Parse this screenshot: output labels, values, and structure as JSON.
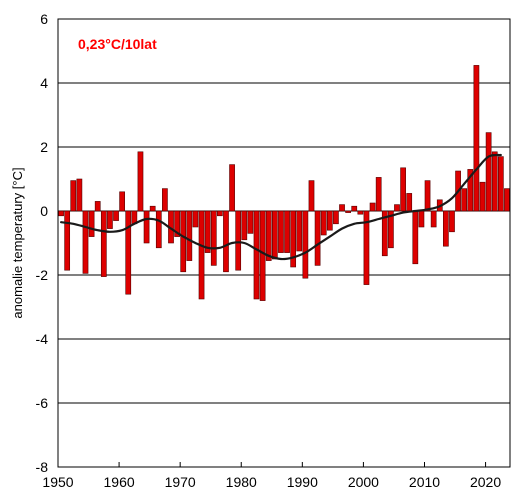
{
  "chart_data": {
    "type": "bar",
    "title": "",
    "xlabel": "",
    "ylabel": "anomalie temperatury [°C]",
    "annotation": "0,23°C/10lat",
    "annotation_color": "#ff0000",
    "bar_color": "#dd0000",
    "bar_edge_color": "#550000",
    "trend_color": "#1a1a1a",
    "xlim": [
      1950,
      2024
    ],
    "ylim": [
      -8,
      6
    ],
    "grid": true,
    "xticks": [
      "1950",
      "1960",
      "1970",
      "1980",
      "1990",
      "2000",
      "2010",
      "2020"
    ],
    "yticks": [
      "-8",
      "-6",
      "-4",
      "-2",
      "0",
      "2",
      "4",
      "6"
    ],
    "x": [
      1951,
      1952,
      1953,
      1954,
      1955,
      1956,
      1957,
      1958,
      1959,
      1960,
      1961,
      1962,
      1963,
      1964,
      1965,
      1966,
      1967,
      1968,
      1969,
      1970,
      1971,
      1972,
      1973,
      1974,
      1975,
      1976,
      1977,
      1978,
      1979,
      1980,
      1981,
      1982,
      1983,
      1984,
      1985,
      1986,
      1987,
      1988,
      1989,
      1990,
      1991,
      1992,
      1993,
      1994,
      1995,
      1996,
      1997,
      1998,
      1999,
      2000,
      2001,
      2002,
      2003,
      2004,
      2005,
      2006,
      2007,
      2008,
      2009,
      2010,
      2011,
      2012,
      2013,
      2014,
      2015,
      2016,
      2017,
      2018,
      2019,
      2020,
      2021,
      2022,
      2023,
      2024
    ],
    "values": [
      -0.15,
      -1.85,
      0.95,
      1.0,
      -1.95,
      -0.8,
      0.3,
      -2.05,
      -0.55,
      -0.3,
      0.6,
      -2.6,
      -0.4,
      1.85,
      -1.0,
      0.15,
      -1.15,
      0.7,
      -1.0,
      -0.8,
      -1.9,
      -1.55,
      -0.5,
      -2.75,
      -1.3,
      -1.7,
      -0.15,
      -1.9,
      1.45,
      -1.85,
      -0.9,
      -0.7,
      -2.75,
      -2.8,
      -1.55,
      -1.5,
      -1.3,
      -1.3,
      -1.75,
      -1.25,
      -2.1,
      0.95,
      -1.7,
      -0.75,
      -0.6,
      -0.4,
      0.2,
      -0.05,
      0.15,
      -0.1,
      -2.3,
      0.25,
      1.05,
      -1.4,
      -1.15,
      0.2,
      1.35,
      0.55,
      -1.65,
      -0.5,
      0.95,
      -0.5,
      0.35,
      -1.1,
      -0.65,
      1.25,
      0.7,
      1.3,
      4.55,
      0.9,
      2.45,
      1.85,
      1.7,
      0.7
    ],
    "trend": {
      "name": "",
      "x": [
        1951,
        1953,
        1955,
        1957,
        1959,
        1961,
        1963,
        1965,
        1967,
        1969,
        1971,
        1973,
        1975,
        1977,
        1979,
        1981,
        1983,
        1985,
        1987,
        1989,
        1991,
        1993,
        1995,
        1997,
        1999,
        2001,
        2003,
        2005,
        2007,
        2009,
        2011,
        2013,
        2015,
        2017,
        2019,
        2021,
        2023
      ],
      "y": [
        -0.35,
        -0.4,
        -0.5,
        -0.6,
        -0.65,
        -0.6,
        -0.4,
        -0.25,
        -0.3,
        -0.55,
        -0.8,
        -1.0,
        -1.15,
        -1.15,
        -1.0,
        -1.0,
        -1.2,
        -1.4,
        -1.5,
        -1.45,
        -1.3,
        -1.05,
        -0.8,
        -0.55,
        -0.4,
        -0.35,
        -0.25,
        -0.15,
        -0.05,
        0.0,
        0.05,
        0.15,
        0.4,
        0.85,
        1.3,
        1.7,
        1.75
      ]
    }
  }
}
